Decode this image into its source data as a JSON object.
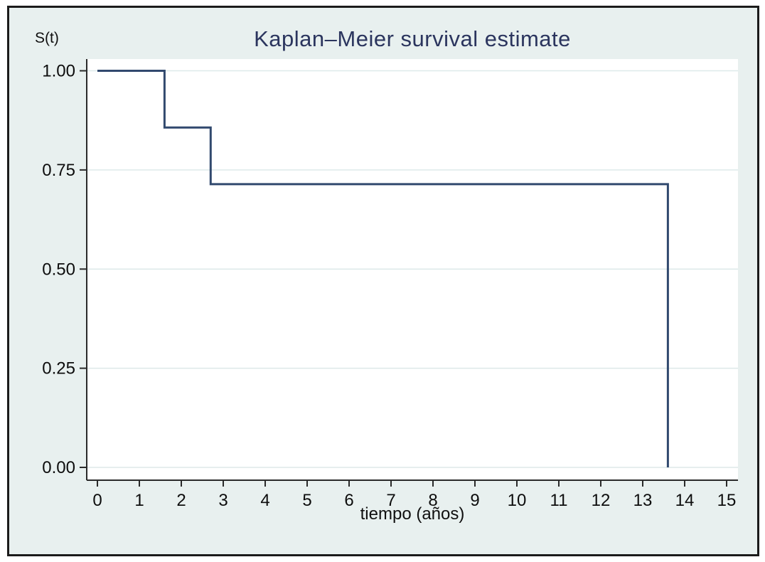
{
  "figure": {
    "title": "Kaplan–Meier survival estimate",
    "y_axis_corner_label": "S(t)",
    "x_axis_label": "tiempo (años)"
  },
  "colors": {
    "frame_border": "#1b1b1b",
    "canvas_background": "#e8f0ef",
    "plot_background": "#ffffff",
    "gridline": "#dde9e9",
    "axis": "#2a2a2a",
    "tick_label": "#0d0d0d",
    "title": "#2b355e",
    "km_line": "#31496e"
  },
  "chart_data": {
    "type": "line",
    "subtype": "step",
    "title": "Kaplan–Meier survival estimate",
    "xlabel": "tiempo (años)",
    "ylabel": "S(t)",
    "xlim": [
      0,
      15
    ],
    "ylim": [
      0,
      1
    ],
    "grid": "horizontal-only",
    "legend": "none",
    "x_ticks": [
      0,
      1,
      2,
      3,
      4,
      5,
      6,
      7,
      8,
      9,
      10,
      11,
      12,
      13,
      14,
      15
    ],
    "y_ticks": [
      {
        "v": 1.0,
        "label": "1.00"
      },
      {
        "v": 0.75,
        "label": "0.75"
      },
      {
        "v": 0.5,
        "label": "0.50"
      },
      {
        "v": 0.25,
        "label": "0.25"
      },
      {
        "v": 0.0,
        "label": "0.00"
      }
    ],
    "series": [
      {
        "name": "Kaplan–Meier survival estimate",
        "step_points": [
          [
            0,
            1.0
          ],
          [
            1.6,
            1.0
          ],
          [
            1.6,
            0.857
          ],
          [
            2.7,
            0.857
          ],
          [
            2.7,
            0.714
          ],
          [
            13.6,
            0.714
          ],
          [
            13.6,
            0.0
          ]
        ]
      }
    ],
    "events": [
      {
        "time": 1.6,
        "survival_after": 0.857
      },
      {
        "time": 2.7,
        "survival_after": 0.714
      },
      {
        "time": 13.6,
        "survival_after": 0.0
      }
    ]
  }
}
